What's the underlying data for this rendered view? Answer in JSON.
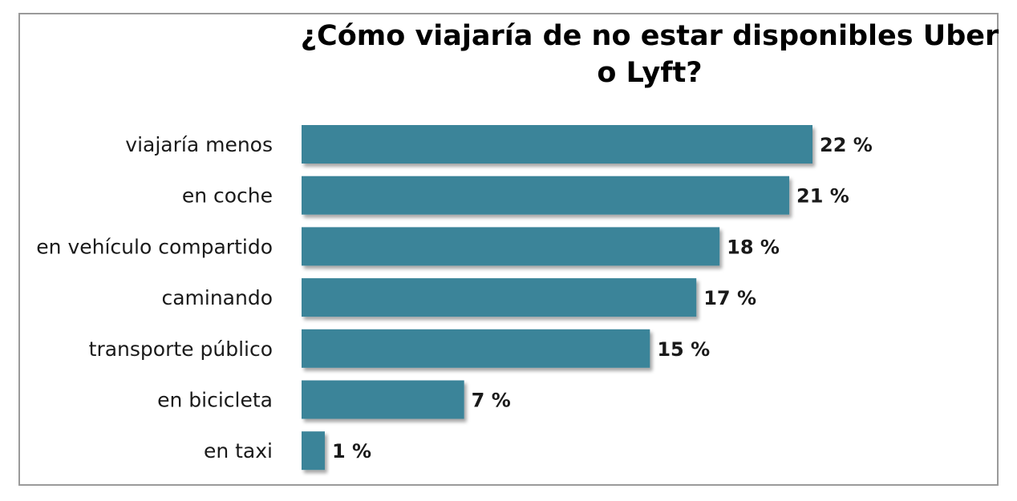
{
  "chart_data": {
    "type": "bar",
    "orientation": "horizontal",
    "title": "¿Cómo viajaría de no estar disponibles Uber o Lyft?",
    "categories": [
      "viajaría menos",
      "en coche",
      "en vehículo compartido",
      "caminando",
      "transporte público",
      "en bicicleta",
      "en taxi"
    ],
    "values": [
      22,
      21,
      18,
      17,
      15,
      7,
      1
    ],
    "value_labels": [
      "22 %",
      "21 %",
      "18 %",
      "17 %",
      "15 %",
      "7 %",
      "1 %"
    ],
    "xlim": [
      0,
      22
    ],
    "grid": false,
    "legend": "none",
    "bar_color": "#3a8499"
  }
}
